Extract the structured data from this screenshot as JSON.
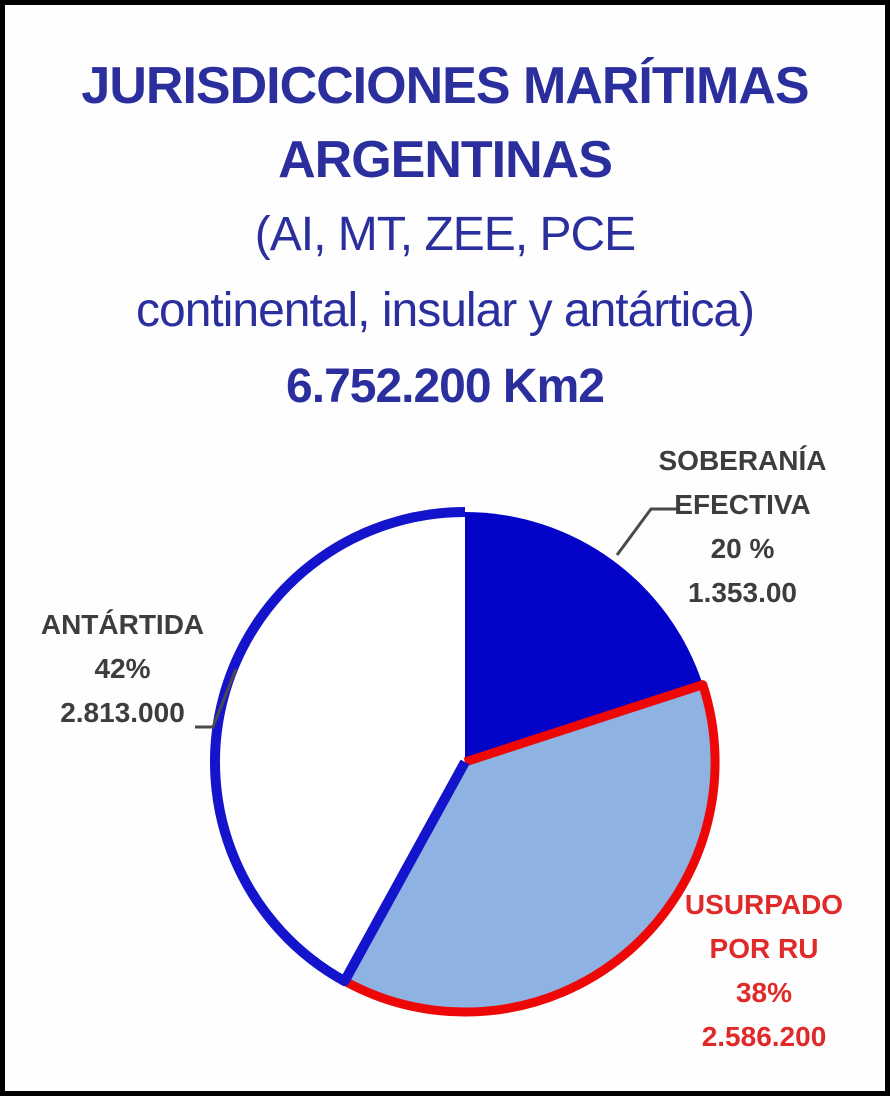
{
  "window": {
    "background": "#FEFEFE",
    "frame_color": "#000000"
  },
  "header": {
    "title_line1": "JURISDICCIONES MARÍTIMAS",
    "title_line2": "ARGENTINAS",
    "subtitle_line1": "(AI, MT, ZEE, PCE",
    "subtitle_line2": "continental, insular y antártica)",
    "total_area": "6.752.200 Km2",
    "text_color": "#2B2F9E"
  },
  "chart_data": {
    "type": "pie",
    "title": "JURISDICCIONES MARÍTIMAS ARGENTINAS",
    "subtitle": "(AI, MT, ZEE, PCE continental, insular y antártica)",
    "total_label": "6.752.200 Km2",
    "unit": "Km2",
    "start_angle_deg": -90,
    "direction": "clockwise",
    "legend_position": "callout-labels",
    "segments": [
      {
        "id": "soberania",
        "label_line1": "SOBERANÍA",
        "label_line2": "EFECTIVA",
        "percent": 20,
        "percent_label": "20 %",
        "value_label": "1.353.00",
        "fill": "#0404C8",
        "border": null,
        "label_color": "#3D3D3D"
      },
      {
        "id": "usurpado",
        "label_line1": "USURPADO",
        "label_line2": "POR RU",
        "percent": 38,
        "percent_label": "38%",
        "value_label": "2.586.200",
        "fill": "#8EB3E2",
        "border": "#EE0707",
        "label_color": "#E02A2A"
      },
      {
        "id": "antartida",
        "label_line1": "ANTÁRTIDA",
        "percent": 42,
        "percent_label": "42%",
        "value_label": "2.813.000",
        "fill": "#FFFFFF",
        "border": "#1414CC",
        "label_color": "#3D3D3D"
      }
    ]
  }
}
